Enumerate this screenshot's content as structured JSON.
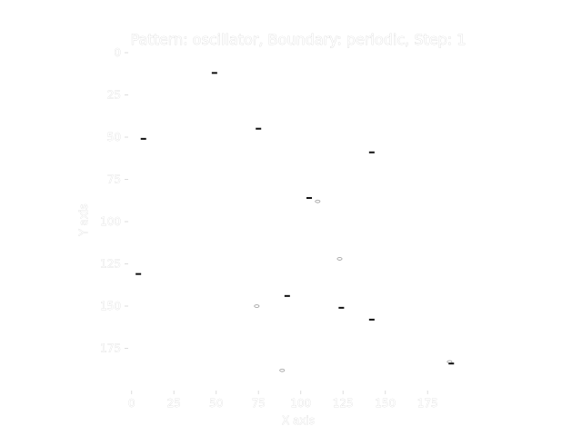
{
  "chart_data": {
    "type": "scatter",
    "title": "Pattern: oscillator, Boundary: periodic, Step: 1",
    "xlabel": "X axis",
    "ylabel": "Y axis",
    "xlim": [
      -2,
      198
    ],
    "ylim": [
      0,
      200
    ],
    "y_inverted": true,
    "grid": false,
    "x_ticks": [
      {
        "value": 0,
        "label": "0"
      },
      {
        "value": 25,
        "label": "25"
      },
      {
        "value": 50,
        "label": "50"
      },
      {
        "value": 75,
        "label": "75"
      },
      {
        "value": 100,
        "label": "100"
      },
      {
        "value": 125,
        "label": "125"
      },
      {
        "value": 150,
        "label": "150"
      },
      {
        "value": 175,
        "label": "175"
      }
    ],
    "y_ticks": [
      {
        "value": 0,
        "label": "0"
      },
      {
        "value": 25,
        "label": "25"
      },
      {
        "value": 50,
        "label": "50"
      },
      {
        "value": 75,
        "label": "75"
      },
      {
        "value": 100,
        "label": "100"
      },
      {
        "value": 125,
        "label": "125"
      },
      {
        "value": 150,
        "label": "150"
      },
      {
        "value": 175,
        "label": "175"
      }
    ],
    "points": [
      {
        "x": 49,
        "y": 12,
        "style": "bar"
      },
      {
        "x": 75,
        "y": 45,
        "style": "bar"
      },
      {
        "x": 7,
        "y": 51,
        "style": "bar"
      },
      {
        "x": 142,
        "y": 59,
        "style": "bar"
      },
      {
        "x": 105,
        "y": 86,
        "style": "bar"
      },
      {
        "x": 110,
        "y": 88,
        "style": "ring"
      },
      {
        "x": 123,
        "y": 122,
        "style": "ring"
      },
      {
        "x": 4,
        "y": 131,
        "style": "bar"
      },
      {
        "x": 92,
        "y": 144,
        "style": "bar"
      },
      {
        "x": 74,
        "y": 150,
        "style": "ring"
      },
      {
        "x": 124,
        "y": 151,
        "style": "bar"
      },
      {
        "x": 142,
        "y": 158,
        "style": "bar"
      },
      {
        "x": 188,
        "y": 183,
        "style": "ring"
      },
      {
        "x": 189,
        "y": 184,
        "style": "bar"
      },
      {
        "x": 89,
        "y": 188,
        "style": "ring"
      }
    ]
  }
}
